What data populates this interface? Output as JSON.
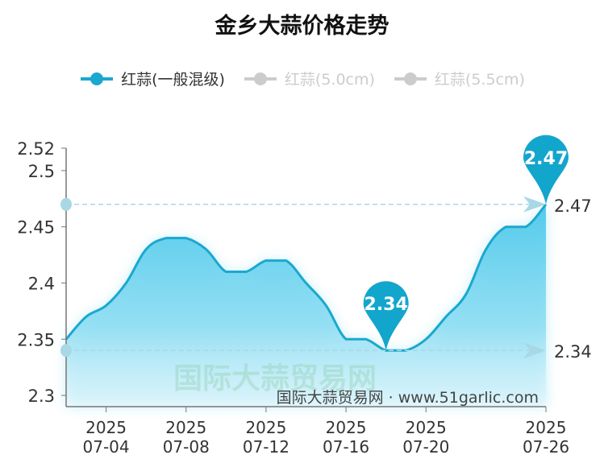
{
  "chart_data": {
    "type": "area",
    "title": "金乡大蒜价格走势",
    "legend": [
      {
        "name": "红蒜(一般混级)",
        "active": true,
        "color": "#1aa8cf"
      },
      {
        "name": "红蒜(5.0cm)",
        "active": false,
        "color": "#cccccc"
      },
      {
        "name": "红蒜(5.5cm)",
        "active": false,
        "color": "#cccccc"
      }
    ],
    "legend_position": "top-center",
    "x": [
      "07-02",
      "07-03",
      "07-04",
      "07-05",
      "07-06",
      "07-07",
      "07-08",
      "07-09",
      "07-10",
      "07-11",
      "07-12",
      "07-13",
      "07-14",
      "07-15",
      "07-16",
      "07-17",
      "07-18",
      "07-19",
      "07-20",
      "07-21",
      "07-22",
      "07-23",
      "07-24",
      "07-25",
      "07-26"
    ],
    "series": [
      {
        "name": "红蒜(一般混级)",
        "values": [
          2.35,
          2.37,
          2.38,
          2.4,
          2.43,
          2.44,
          2.44,
          2.43,
          2.41,
          2.41,
          2.42,
          2.42,
          2.4,
          2.38,
          2.35,
          2.35,
          2.34,
          2.34,
          2.35,
          2.37,
          2.39,
          2.43,
          2.45,
          2.45,
          2.47
        ]
      }
    ],
    "ylim": [
      2.29,
      2.52
    ],
    "yticks": [
      "2.52",
      "2.5",
      "2.45",
      "2.4",
      "2.35",
      "2.3"
    ],
    "ytick_values": [
      2.52,
      2.5,
      2.45,
      2.4,
      2.35,
      2.3
    ],
    "xticks": [
      {
        "index": 2,
        "year": "2025",
        "date": "07-04"
      },
      {
        "index": 6,
        "year": "2025",
        "date": "07-08"
      },
      {
        "index": 10,
        "year": "2025",
        "date": "07-12"
      },
      {
        "index": 14,
        "year": "2025",
        "date": "07-16"
      },
      {
        "index": 18,
        "year": "2025",
        "date": "07-20"
      },
      {
        "index": 24,
        "year": "2025",
        "date": "07-26"
      }
    ],
    "mark_points": [
      {
        "label": "2.34",
        "index": 16,
        "value": 2.34
      },
      {
        "label": "2.47",
        "index": 24,
        "value": 2.47
      }
    ],
    "mark_lines": [
      {
        "label": "2.47",
        "value": 2.47
      },
      {
        "label": "2.34",
        "value": 2.34
      }
    ],
    "watermark": "国际大蒜贸易网",
    "source": "国际大蒜贸易网 · www.51garlic.com",
    "line_color": "#1aa8cf",
    "grid": false
  }
}
